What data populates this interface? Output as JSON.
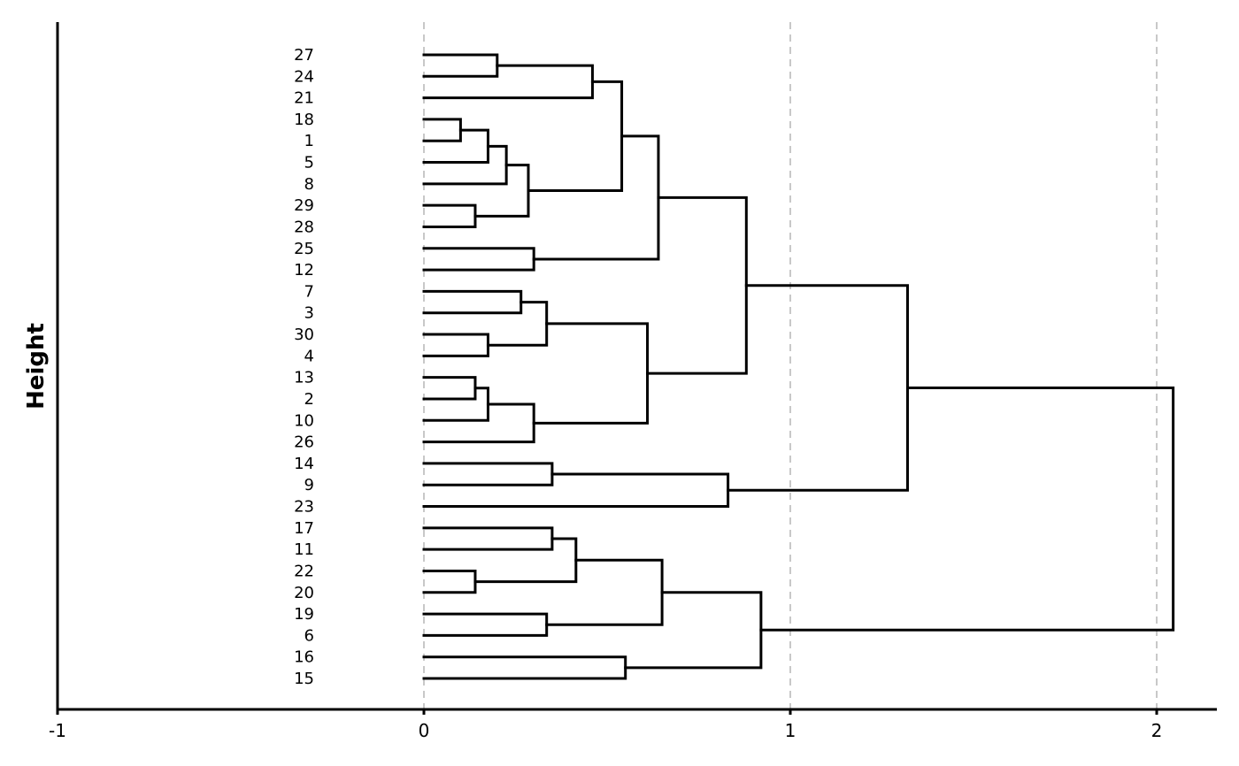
{
  "chart_data": {
    "type": "dendrogram",
    "orientation": "horizontal",
    "ylabel": "Height",
    "xlim": [
      -1,
      2.15
    ],
    "x_ticks": [
      "-1",
      "0",
      "1",
      "2"
    ],
    "x_tick_values": [
      -1,
      0,
      1,
      2
    ],
    "grid": "vertical dashed at 0, 1, 2",
    "leaves": [
      "27",
      "24",
      "21",
      "18",
      "1",
      "5",
      "8",
      "29",
      "28",
      "25",
      "12",
      "7",
      "3",
      "30",
      "4",
      "13",
      "2",
      "10",
      "26",
      "14",
      "9",
      "23",
      "17",
      "11",
      "22",
      "20",
      "19",
      "6",
      "16",
      "15"
    ],
    "merges": [
      {
        "id": "a",
        "children": [
          "27",
          "24"
        ],
        "height": 0.2
      },
      {
        "id": "b",
        "children": [
          "a",
          "21"
        ],
        "height": 0.46
      },
      {
        "id": "c",
        "children": [
          "18",
          "1"
        ],
        "height": 0.1
      },
      {
        "id": "d",
        "children": [
          "c",
          "5"
        ],
        "height": 0.175
      },
      {
        "id": "e",
        "children": [
          "d",
          "8"
        ],
        "height": 0.225
      },
      {
        "id": "f",
        "children": [
          "29",
          "28"
        ],
        "height": 0.14
      },
      {
        "id": "g",
        "children": [
          "e",
          "f"
        ],
        "height": 0.285
      },
      {
        "id": "h",
        "children": [
          "b",
          "g"
        ],
        "height": 0.54
      },
      {
        "id": "i",
        "children": [
          "25",
          "12"
        ],
        "height": 0.3
      },
      {
        "id": "j",
        "children": [
          "h",
          "i"
        ],
        "height": 0.64
      },
      {
        "id": "k",
        "children": [
          "7",
          "3"
        ],
        "height": 0.265
      },
      {
        "id": "l",
        "children": [
          "30",
          "4"
        ],
        "height": 0.175
      },
      {
        "id": "m",
        "children": [
          "k",
          "l"
        ],
        "height": 0.335
      },
      {
        "id": "n",
        "children": [
          "13",
          "2"
        ],
        "height": 0.14
      },
      {
        "id": "o",
        "children": [
          "n",
          "10"
        ],
        "height": 0.175
      },
      {
        "id": "p",
        "children": [
          "o",
          "26"
        ],
        "height": 0.3
      },
      {
        "id": "q",
        "children": [
          "m",
          "p"
        ],
        "height": 0.61
      },
      {
        "id": "r",
        "children": [
          "j",
          "q"
        ],
        "height": 0.88
      },
      {
        "id": "s",
        "children": [
          "14",
          "9"
        ],
        "height": 0.35
      },
      {
        "id": "t",
        "children": [
          "s",
          "23"
        ],
        "height": 0.83
      },
      {
        "id": "u",
        "children": [
          "r",
          "t"
        ],
        "height": 1.32
      },
      {
        "id": "v",
        "children": [
          "17",
          "11"
        ],
        "height": 0.35
      },
      {
        "id": "w",
        "children": [
          "22",
          "20"
        ],
        "height": 0.14
      },
      {
        "id": "x",
        "children": [
          "v",
          "w"
        ],
        "height": 0.415
      },
      {
        "id": "y",
        "children": [
          "19",
          "6"
        ],
        "height": 0.335
      },
      {
        "id": "z",
        "children": [
          "x",
          "y"
        ],
        "height": 0.65
      },
      {
        "id": "aa",
        "children": [
          "16",
          "15"
        ],
        "height": 0.55
      },
      {
        "id": "ab",
        "children": [
          "z",
          "aa"
        ],
        "height": 0.92
      },
      {
        "id": "root",
        "children": [
          "u",
          "ab"
        ],
        "height": 2.045
      }
    ]
  }
}
